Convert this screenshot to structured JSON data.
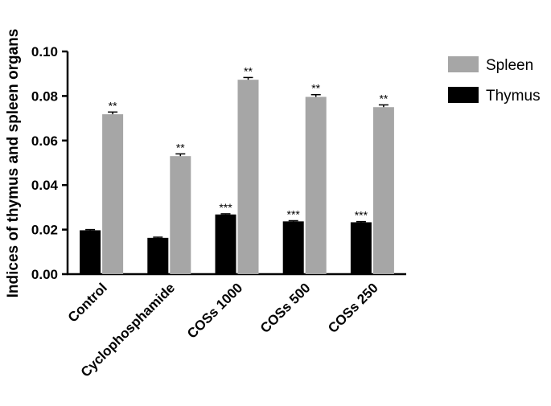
{
  "chart_data": {
    "type": "bar",
    "ylabel": "Indices of thymus and spleen organs",
    "ylim": [
      0,
      0.1
    ],
    "yticks": [
      "0.00",
      "0.02",
      "0.04",
      "0.06",
      "0.08",
      "0.10"
    ],
    "categories": [
      "Control",
      "Cyclophosphamide",
      "COSs 1000",
      "COSs 500",
      "COSs 250"
    ],
    "series": [
      {
        "name": "Thymus",
        "color": "#000000",
        "values": [
          0.0197,
          0.0163,
          0.0268,
          0.0237,
          0.0233
        ],
        "errors": [
          0.0003,
          0.0003,
          0.0003,
          0.0003,
          0.0003
        ],
        "significance": [
          "",
          "",
          "***",
          "***",
          "***"
        ]
      },
      {
        "name": "Spleen",
        "color": "#a6a6a6",
        "values": [
          0.0718,
          0.053,
          0.0873,
          0.0796,
          0.075
        ],
        "errors": [
          0.001,
          0.001,
          0.001,
          0.001,
          0.001
        ],
        "significance": [
          "**",
          "**",
          "**",
          "**",
          "**"
        ]
      }
    ],
    "legend": {
      "placement": "top-right",
      "order": [
        "Spleen",
        "Thymus"
      ]
    },
    "grid": false
  }
}
